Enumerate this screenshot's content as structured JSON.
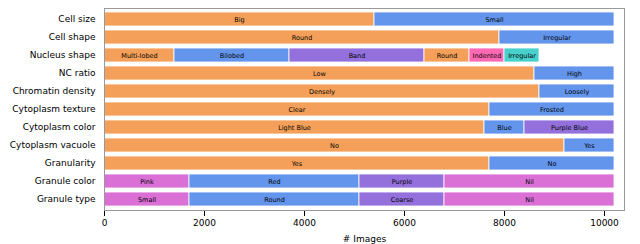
{
  "chart_data": {
    "type": "bar",
    "orientation": "horizontal",
    "stacked": true,
    "categories": [
      "Cell size",
      "Cell shape",
      "Nucleus shape",
      "NC ratio",
      "Chromatin density",
      "Cytoplasm texture",
      "Cytoplasm color",
      "Cytoplasm vacuole",
      "Granularity",
      "Granule color",
      "Granule type"
    ],
    "series": [
      {
        "values": [
          5400,
          7900,
          1400,
          8600,
          8700,
          7700,
          7600,
          9200,
          7700,
          1700,
          1700
        ],
        "colors": [
          "#F5A05A",
          "#F5A05A",
          "#F5A05A",
          "#F5A05A",
          "#F5A05A",
          "#F5A05A",
          "#F5A05A",
          "#F5A05A",
          "#F5A05A",
          "#DA70D6",
          "#DA70D6"
        ],
        "value_labels": [
          "Big",
          "Round",
          "Multi-lobed",
          "Low",
          "Densely",
          "Clear",
          "Light Blue",
          "No",
          "Yes",
          "Pink",
          "Small"
        ]
      },
      {
        "values": [
          4800,
          2300,
          2300,
          1600,
          1500,
          2500,
          800,
          1000,
          2500,
          3400,
          3400
        ],
        "colors": [
          "#6495ED",
          "#6495ED",
          "#6495ED",
          "#6495ED",
          "#6495ED",
          "#6495ED",
          "#6495ED",
          "#6495ED",
          "#6495ED",
          "#6495ED",
          "#6495ED"
        ],
        "value_labels": [
          "Small",
          "Irregular",
          "Bilobed",
          "High",
          "Loosely",
          "Frosted",
          "Blue",
          "Yes",
          "No",
          "Red",
          "Round"
        ]
      },
      {
        "values": [
          null,
          null,
          2700,
          null,
          null,
          null,
          1800,
          null,
          null,
          1700,
          1700
        ],
        "colors": [
          null,
          null,
          "#9370DB",
          null,
          null,
          null,
          "#9370DB",
          null,
          null,
          "#9370DB",
          "#9370DB"
        ],
        "value_labels": [
          null,
          null,
          "Band",
          null,
          null,
          null,
          "Purple Blue",
          null,
          null,
          "Purple",
          "Coarse"
        ]
      },
      {
        "values": [
          null,
          null,
          900,
          null,
          null,
          null,
          null,
          null,
          null,
          3400,
          3400
        ],
        "colors": [
          null,
          null,
          "#F5A05A",
          null,
          null,
          null,
          null,
          null,
          null,
          "#DA70D6",
          "#DA70D6"
        ],
        "value_labels": [
          null,
          null,
          "Round",
          null,
          null,
          null,
          null,
          null,
          null,
          "Nil",
          "Nil"
        ]
      },
      {
        "values": [
          null,
          null,
          700,
          null,
          null,
          null,
          null,
          null,
          null,
          null,
          null
        ],
        "colors": [
          null,
          null,
          "#FF69B4",
          null,
          null,
          null,
          null,
          null,
          null,
          null,
          null
        ],
        "value_labels": [
          null,
          null,
          "Indented",
          null,
          null,
          null,
          null,
          null,
          null,
          null,
          null
        ]
      },
      {
        "values": [
          null,
          null,
          700,
          null,
          null,
          null,
          null,
          null,
          null,
          null,
          null
        ],
        "colors": [
          null,
          null,
          "#48D1CC",
          null,
          null,
          null,
          null,
          null,
          null,
          null,
          null
        ],
        "value_labels": [
          null,
          null,
          "Irregular",
          null,
          null,
          null,
          null,
          null,
          null,
          null,
          null
        ]
      }
    ],
    "xlabel": "# Images",
    "xlim": [
      0,
      10400
    ],
    "xticks": [
      0,
      2000,
      4000,
      6000,
      8000,
      10000
    ],
    "grid": false
  }
}
